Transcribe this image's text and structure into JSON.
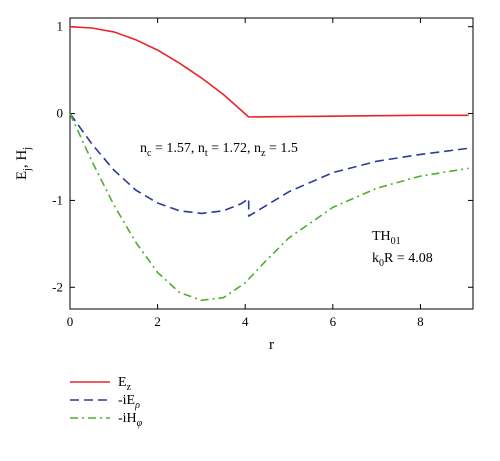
{
  "chart_data": {
    "type": "line",
    "xlabel": "r",
    "ylabel": {
      "main": "E",
      "sub1": "j",
      "sep": ", H",
      "sub2": "j"
    },
    "xlim": [
      0,
      9.2
    ],
    "ylim": [
      -2.25,
      1.1
    ],
    "x_ticks": [
      0,
      2,
      4,
      6,
      8
    ],
    "y_ticks": [
      1,
      0,
      -1,
      -2
    ],
    "grid": false,
    "legend_position": "below",
    "annotations": {
      "indices": {
        "a_main": "n",
        "a_sub": "c",
        "a_val": " = 1.57, ",
        "b_main": "n",
        "b_sub": "t",
        "b_val": " = 1.72, ",
        "c_main": "n",
        "c_sub": "z",
        "c_val": " = 1.5"
      },
      "mode": {
        "main": "TH",
        "sub": "01"
      },
      "k0r": {
        "main": "k",
        "sub": "0",
        "rest": "R = 4.08"
      }
    },
    "series": [
      {
        "name": {
          "main": "E",
          "sub": "z"
        },
        "color": "#e8262b",
        "dash": "solid",
        "points": [
          [
            0,
            1.0
          ],
          [
            0.5,
            0.985
          ],
          [
            1.0,
            0.94
          ],
          [
            1.5,
            0.85
          ],
          [
            2.0,
            0.73
          ],
          [
            2.5,
            0.58
          ],
          [
            3.0,
            0.41
          ],
          [
            3.5,
            0.22
          ],
          [
            4.08,
            -0.04
          ],
          [
            5,
            -0.035
          ],
          [
            6,
            -0.03
          ],
          [
            7,
            -0.025
          ],
          [
            8,
            -0.02
          ],
          [
            9.1,
            -0.02
          ]
        ]
      },
      {
        "name": {
          "main": "-iE",
          "sub": "ρ"
        },
        "color": "#2b3a9c",
        "dash": "dashed",
        "points": [
          [
            0,
            0
          ],
          [
            0.5,
            -0.35
          ],
          [
            1.0,
            -0.65
          ],
          [
            1.5,
            -0.88
          ],
          [
            2.0,
            -1.03
          ],
          [
            2.5,
            -1.12
          ],
          [
            3.0,
            -1.15
          ],
          [
            3.5,
            -1.12
          ],
          [
            3.9,
            -1.04
          ],
          [
            4.08,
            -0.98
          ],
          [
            4.08,
            -1.18
          ],
          [
            5,
            -0.9
          ],
          [
            6,
            -0.68
          ],
          [
            7,
            -0.55
          ],
          [
            8,
            -0.47
          ],
          [
            9.1,
            -0.4
          ]
        ]
      },
      {
        "name": {
          "main": "-iH",
          "sub": "φ"
        },
        "color": "#4fae2e",
        "dash": "dashdot",
        "points": [
          [
            0,
            0
          ],
          [
            0.5,
            -0.55
          ],
          [
            1.0,
            -1.05
          ],
          [
            1.5,
            -1.48
          ],
          [
            2.0,
            -1.83
          ],
          [
            2.5,
            -2.06
          ],
          [
            3.0,
            -2.15
          ],
          [
            3.5,
            -2.12
          ],
          [
            4.0,
            -1.95
          ],
          [
            4.5,
            -1.68
          ],
          [
            5,
            -1.43
          ],
          [
            6,
            -1.08
          ],
          [
            7,
            -0.86
          ],
          [
            8,
            -0.72
          ],
          [
            9.1,
            -0.63
          ]
        ]
      }
    ]
  }
}
